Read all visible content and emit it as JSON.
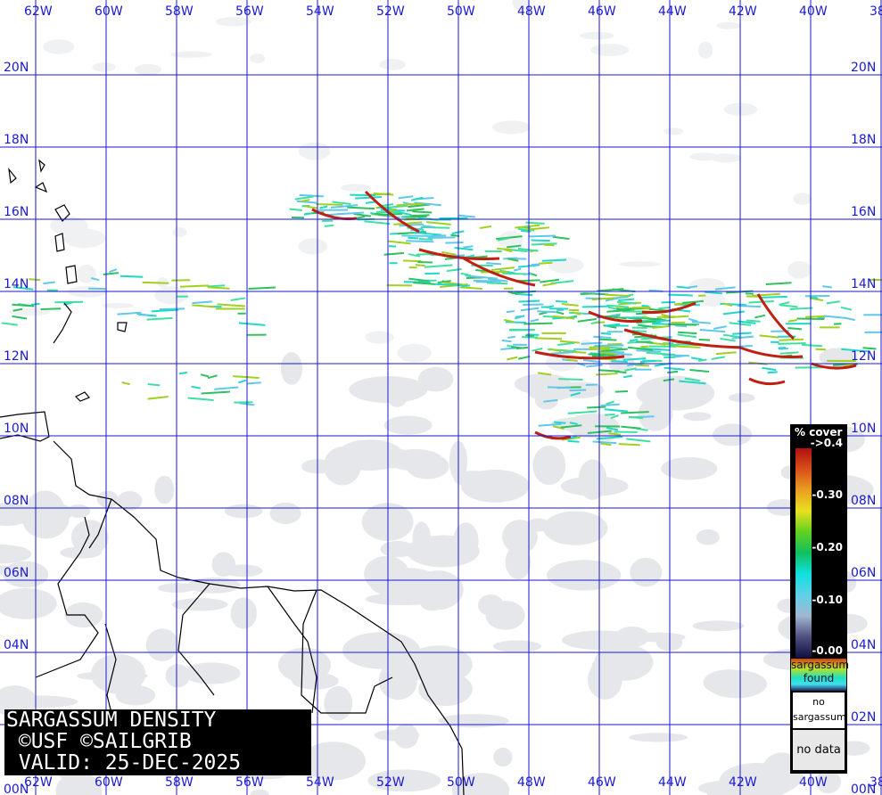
{
  "map": {
    "title_lines": [
      "SARGASSUM DENSITY",
      " ©USF ©SAILGRIB",
      " VALID: 25-DEC-2025"
    ],
    "longitude_labels": [
      "62W",
      "60W",
      "58W",
      "56W",
      "54W",
      "52W",
      "50W",
      "48W",
      "46W",
      "44W",
      "42W",
      "40W",
      "38"
    ],
    "latitude_labels": [
      "20N",
      "18N",
      "16N",
      "14N",
      "12N",
      "10N",
      "08N",
      "06N",
      "04N",
      "02N",
      "00N"
    ],
    "grid_color": "#1a1ad0",
    "land_outline_color": "#000000",
    "no_data_color": "#e6e7ea"
  },
  "legend": {
    "title": "% cover",
    "ticks": [
      "->0.4",
      "-0.30",
      "-0.20",
      "-0.10",
      "-0.00"
    ],
    "found_label": "sargassum found",
    "no_sargassum_label": "no sargassum",
    "no_data_label": "no data",
    "colors": {
      "high": "#b01010",
      "mid": "#e8e020",
      "low": "#10e0e0",
      "zero": "#101040"
    }
  }
}
